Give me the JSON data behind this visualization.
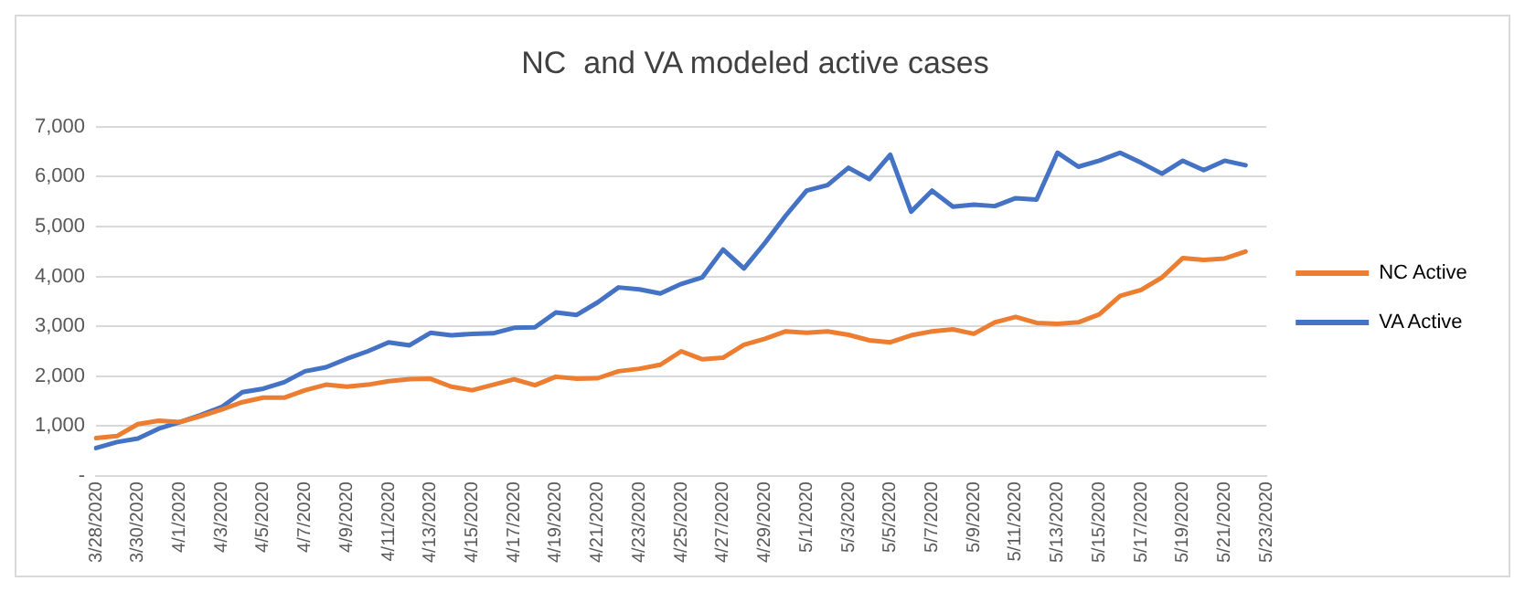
{
  "chart_data": {
    "type": "line",
    "title": "NC  and VA modeled active cases",
    "categories": [
      "3/28/2020",
      null,
      "3/30/2020",
      null,
      "4/1/2020",
      null,
      "4/3/2020",
      null,
      "4/5/2020",
      null,
      "4/7/2020",
      null,
      "4/9/2020",
      null,
      "4/11/2020",
      null,
      "4/13/2020",
      null,
      "4/15/2020",
      null,
      "4/17/2020",
      null,
      "4/19/2020",
      null,
      "4/21/2020",
      null,
      "4/23/2020",
      null,
      "4/25/2020",
      null,
      "4/27/2020",
      null,
      "4/29/2020",
      null,
      "5/1/2020",
      null,
      "5/3/2020",
      null,
      "5/5/2020",
      null,
      "5/7/2020",
      null,
      "5/9/2020",
      null,
      "5/11/2020",
      null,
      "5/13/2020",
      null,
      "5/15/2020",
      null,
      "5/17/2020",
      null,
      "5/19/2020",
      null,
      "5/21/2020",
      null,
      "5/23/2020"
    ],
    "series": [
      {
        "name": "NC Active",
        "color": "#ed7d31",
        "values": [
          760,
          800,
          1040,
          1110,
          1080,
          1200,
          1330,
          1480,
          1570,
          1570,
          1720,
          1830,
          1790,
          1830,
          1900,
          1940,
          1950,
          1790,
          1720,
          1830,
          1940,
          1820,
          1990,
          1950,
          1960,
          2100,
          2150,
          2230,
          2500,
          2340,
          2370,
          2630,
          2750,
          2900,
          2870,
          2900,
          2830,
          2720,
          2680,
          2820,
          2900,
          2940,
          2850,
          3080,
          3190,
          3070,
          3050,
          3080,
          3240,
          3610,
          3730,
          3980,
          4370,
          4330,
          4360,
          4500,
          null
        ]
      },
      {
        "name": "VA Active",
        "color": "#4472c4",
        "values": [
          560,
          680,
          750,
          950,
          1080,
          1220,
          1380,
          1680,
          1750,
          1880,
          2100,
          2180,
          2350,
          2500,
          2680,
          2620,
          2870,
          2820,
          2850,
          2860,
          2970,
          2980,
          3280,
          3230,
          3480,
          3780,
          3740,
          3660,
          3850,
          3980,
          4540,
          4160,
          4670,
          5220,
          5720,
          5830,
          6180,
          5950,
          6440,
          5300,
          5720,
          5400,
          5440,
          5410,
          5570,
          5540,
          6480,
          6200,
          6320,
          6480,
          6280,
          6060,
          6320,
          6130,
          6320,
          6230,
          null
        ]
      }
    ],
    "ylim": [
      0,
      7000
    ],
    "yticks": [
      {
        "value": 0,
        "label": "-"
      },
      {
        "value": 1000,
        "label": "1,000"
      },
      {
        "value": 2000,
        "label": "2,000"
      },
      {
        "value": 3000,
        "label": "3,000"
      },
      {
        "value": 4000,
        "label": "4,000"
      },
      {
        "value": 5000,
        "label": "5,000"
      },
      {
        "value": 6000,
        "label": "6,000"
      },
      {
        "value": 7000,
        "label": "7,000"
      }
    ],
    "grid": "y",
    "legend": "right",
    "marker": "none",
    "line_style": "solid"
  }
}
